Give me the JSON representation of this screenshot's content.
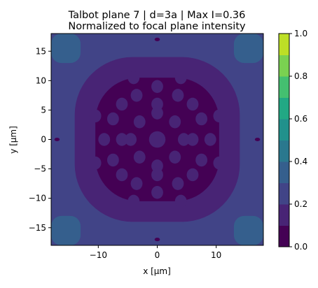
{
  "chart_data": {
    "type": "heatmap",
    "plot_style": "filled-contour",
    "title_lines": [
      "Talbot plane 7 | d=3a | Max I=0.36",
      "Normalized to focal plane intensity"
    ],
    "xlabel": "x [μm]",
    "ylabel": "y [μm]",
    "xlim": [
      -18,
      18
    ],
    "ylim": [
      -18,
      18
    ],
    "xticks": [
      -10,
      0,
      10
    ],
    "yticks": [
      -15,
      -10,
      -5,
      0,
      5,
      10,
      15
    ],
    "xtick_labels": [
      "−10",
      "0",
      "10"
    ],
    "ytick_labels": [
      "−15",
      "−10",
      "−5",
      "0",
      "5",
      "10",
      "15"
    ],
    "grid": false,
    "max_intensity": 0.36,
    "colorbar": {
      "range": [
        0.0,
        1.0
      ],
      "ticks": [
        0.0,
        0.2,
        0.4,
        0.6,
        0.8,
        1.0
      ],
      "tick_labels": [
        "0.0",
        "0.2",
        "0.4",
        "0.6",
        "0.8",
        "1.0"
      ],
      "levels": [
        0.0,
        0.1,
        0.2,
        0.3,
        0.4,
        0.5,
        0.6,
        0.7,
        0.8,
        0.9,
        1.0
      ],
      "level_colors": [
        "#440154",
        "#482475",
        "#414487",
        "#355f8d",
        "#2a788e",
        "#21918c",
        "#22a884",
        "#44bf70",
        "#7ad151",
        "#bddf26",
        "#fde725"
      ]
    },
    "regions": [
      {
        "level_range": [
          0.2,
          0.3
        ],
        "description_value": "outer background, most of the field"
      },
      {
        "level_range": [
          0.3,
          0.4
        ],
        "x_range": [
          -18,
          -13
        ],
        "y_range": [
          13,
          18
        ]
      },
      {
        "level_range": [
          0.3,
          0.4
        ],
        "x_range": [
          13,
          18
        ],
        "y_range": [
          13,
          18
        ]
      },
      {
        "level_range": [
          0.3,
          0.4
        ],
        "x_range": [
          -18,
          -13
        ],
        "y_range": [
          -18,
          -13
        ]
      },
      {
        "level_range": [
          0.3,
          0.4
        ],
        "x_range": [
          13,
          18
        ],
        "y_range": [
          -18,
          -13
        ]
      },
      {
        "level_range": [
          0.1,
          0.2
        ],
        "x_range": [
          -14,
          14
        ],
        "y_range": [
          -14,
          14
        ]
      },
      {
        "level_range": [
          0.0,
          0.1
        ],
        "x_range": [
          -10.5,
          10.5
        ],
        "y_range": [
          -10.5,
          10.5
        ]
      }
    ],
    "spots": [
      {
        "level_range": [
          0.1,
          0.2
        ],
        "x": 0,
        "y": 0
      },
      {
        "level_range": [
          0.1,
          0.2
        ],
        "x": 0,
        "y": 4.5
      },
      {
        "level_range": [
          0.1,
          0.2
        ],
        "x": 0,
        "y": -4.5
      },
      {
        "level_range": [
          0.1,
          0.2
        ],
        "x": 4.5,
        "y": 0
      },
      {
        "level_range": [
          0.1,
          0.2
        ],
        "x": -4.5,
        "y": 0
      },
      {
        "level_range": [
          0.1,
          0.2
        ],
        "x": -3,
        "y": 3
      },
      {
        "level_range": [
          0.1,
          0.2
        ],
        "x": 3,
        "y": 3
      },
      {
        "level_range": [
          0.1,
          0.2
        ],
        "x": -3,
        "y": -3
      },
      {
        "level_range": [
          0.1,
          0.2
        ],
        "x": 3,
        "y": -3
      },
      {
        "level_range": [
          0.1,
          0.2
        ],
        "x": -6,
        "y": 0
      },
      {
        "level_range": [
          0.1,
          0.2
        ],
        "x": 6,
        "y": 0
      },
      {
        "level_range": [
          0.1,
          0.2
        ],
        "x": 0,
        "y": 6
      },
      {
        "level_range": [
          0.1,
          0.2
        ],
        "x": 0,
        "y": -6
      },
      {
        "level_range": [
          0.1,
          0.2
        ],
        "x": -7.5,
        "y": 3.5
      },
      {
        "level_range": [
          0.1,
          0.2
        ],
        "x": -7.5,
        "y": -3.5
      },
      {
        "level_range": [
          0.1,
          0.2
        ],
        "x": 7.5,
        "y": 3.5
      },
      {
        "level_range": [
          0.1,
          0.2
        ],
        "x": 7.5,
        "y": -3.5
      },
      {
        "level_range": [
          0.1,
          0.2
        ],
        "x": -3.5,
        "y": 7.5
      },
      {
        "level_range": [
          0.1,
          0.2
        ],
        "x": 3.5,
        "y": 7.5
      },
      {
        "level_range": [
          0.1,
          0.2
        ],
        "x": -3.5,
        "y": -7.5
      },
      {
        "level_range": [
          0.1,
          0.2
        ],
        "x": 3.5,
        "y": -7.5
      },
      {
        "level_range": [
          0.1,
          0.2
        ],
        "x": -6,
        "y": 6
      },
      {
        "level_range": [
          0.1,
          0.2
        ],
        "x": 6,
        "y": 6
      },
      {
        "level_range": [
          0.1,
          0.2
        ],
        "x": -6,
        "y": -6
      },
      {
        "level_range": [
          0.1,
          0.2
        ],
        "x": 6,
        "y": -6
      },
      {
        "level_range": [
          0.1,
          0.2
        ],
        "x": 0,
        "y": 9
      },
      {
        "level_range": [
          0.1,
          0.2
        ],
        "x": 0,
        "y": -9
      },
      {
        "level_range": [
          0.1,
          0.2
        ],
        "x": -9,
        "y": 0
      },
      {
        "level_range": [
          0.1,
          0.2
        ],
        "x": 9,
        "y": 0
      },
      {
        "level_range": [
          0.1,
          0.2
        ],
        "x": -4,
        "y": 10.5
      },
      {
        "level_range": [
          0.1,
          0.2
        ],
        "x": 4,
        "y": 10.5
      },
      {
        "level_range": [
          0.1,
          0.2
        ],
        "x": -4,
        "y": -10.5
      },
      {
        "level_range": [
          0.1,
          0.2
        ],
        "x": 4,
        "y": -10.5
      },
      {
        "level_range": [
          0.1,
          0.2
        ],
        "x": -10.5,
        "y": 4
      },
      {
        "level_range": [
          0.1,
          0.2
        ],
        "x": -10.5,
        "y": -4
      },
      {
        "level_range": [
          0.1,
          0.2
        ],
        "x": 10.5,
        "y": 4
      },
      {
        "level_range": [
          0.1,
          0.2
        ],
        "x": 10.5,
        "y": -4
      },
      {
        "level_range": [
          0.0,
          0.1
        ],
        "x": 0,
        "y": 17
      },
      {
        "level_range": [
          0.0,
          0.1
        ],
        "x": 0,
        "y": -17
      },
      {
        "level_range": [
          0.0,
          0.1
        ],
        "x": -17,
        "y": 0
      },
      {
        "level_range": [
          0.0,
          0.1
        ],
        "x": 17,
        "y": 0
      }
    ]
  }
}
